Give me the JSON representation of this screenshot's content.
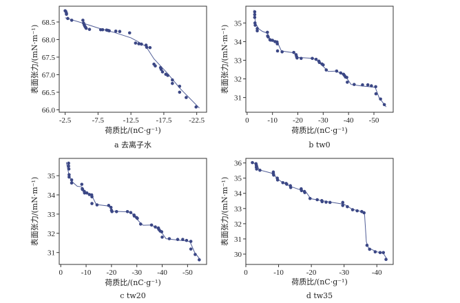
{
  "colors": {
    "points": "#3b4785",
    "line": "#4f5c96",
    "frame": "#333333"
  },
  "chart_data": [
    {
      "type": "scatter",
      "caption": "a  去离子水",
      "xlabel": "荷质比/(nC·g⁻¹)",
      "ylabel": "表面张力/(mN·m⁻¹)",
      "xlim": [
        -1.6,
        -24.0
      ],
      "ylim": [
        65.93,
        68.95
      ],
      "xticks": [
        -2.5,
        -7.5,
        -12.5,
        -17.5,
        -22.5
      ],
      "xtick_labels": [
        "-2.5",
        "-7.5",
        "-12.5",
        "-17.5",
        "-22.5"
      ],
      "yticks": [
        66.0,
        66.5,
        67.0,
        67.5,
        68.0,
        68.5
      ],
      "ytick_labels": [
        "66.0",
        "66.5",
        "67.0",
        "67.5",
        "68.0",
        "68.5"
      ],
      "points": [
        [
          -2.5,
          68.82
        ],
        [
          -2.6,
          68.8
        ],
        [
          -2.7,
          68.75
        ],
        [
          -2.7,
          68.72
        ],
        [
          -2.9,
          68.6
        ],
        [
          -3.5,
          68.55
        ],
        [
          -5.2,
          68.55
        ],
        [
          -5.3,
          68.47
        ],
        [
          -5.4,
          68.42
        ],
        [
          -5.5,
          68.38
        ],
        [
          -5.6,
          68.35
        ],
        [
          -5.7,
          68.32
        ],
        [
          -6.2,
          68.29
        ],
        [
          -7.9,
          68.28
        ],
        [
          -8.2,
          68.28
        ],
        [
          -8.8,
          68.27
        ],
        [
          -9.0,
          68.26
        ],
        [
          -9.2,
          68.25
        ],
        [
          -10.2,
          68.24
        ],
        [
          -10.8,
          68.23
        ],
        [
          -12.3,
          68.19
        ],
        [
          -13.2,
          67.9
        ],
        [
          -13.7,
          67.88
        ],
        [
          -14.1,
          67.87
        ],
        [
          -14.8,
          67.84
        ],
        [
          -14.9,
          67.78
        ],
        [
          -15.4,
          67.77
        ],
        [
          -16.0,
          67.3
        ],
        [
          -16.2,
          67.25
        ],
        [
          -17.0,
          67.2
        ],
        [
          -17.1,
          67.15
        ],
        [
          -17.3,
          67.08
        ],
        [
          -17.8,
          67.01
        ],
        [
          -18.1,
          66.98
        ],
        [
          -18.8,
          66.85
        ],
        [
          -18.8,
          66.75
        ],
        [
          -19.9,
          66.67
        ],
        [
          -19.9,
          66.5
        ],
        [
          -20.9,
          66.35
        ],
        [
          -22.4,
          66.08
        ]
      ],
      "fit_line": [
        [
          -2.5,
          68.62
        ],
        [
          -5.5,
          68.45
        ],
        [
          -8,
          68.3
        ],
        [
          -10,
          68.2
        ],
        [
          -12.5,
          68.05
        ],
        [
          -13.5,
          67.95
        ],
        [
          -14.8,
          67.8
        ],
        [
          -16,
          67.45
        ],
        [
          -18,
          67.05
        ],
        [
          -20,
          66.6
        ],
        [
          -22.9,
          66.05
        ]
      ]
    },
    {
      "type": "scatter",
      "caption": "b  tw0",
      "xlabel": "荷质比/(nC·g⁻¹)",
      "ylabel": "表面张力/(mN·m⁻¹)",
      "xlim": [
        0.5,
        -57.6
      ],
      "ylim": [
        30.21,
        35.9
      ],
      "xticks": [
        0,
        -10,
        -20,
        -30,
        -40,
        -50
      ],
      "xtick_labels": [
        "0",
        "-10",
        "-20",
        "-30",
        "-40",
        "-50"
      ],
      "yticks": [
        31,
        32,
        33,
        34,
        35
      ],
      "ytick_labels": [
        "31",
        "32",
        "33",
        "34",
        "35"
      ],
      "points": [
        [
          -3,
          35.6
        ],
        [
          -3,
          35.45
        ],
        [
          -3,
          35.3
        ],
        [
          -3.1,
          35.0
        ],
        [
          -3.2,
          34.88
        ],
        [
          -4,
          34.7
        ],
        [
          -4,
          34.58
        ],
        [
          -8,
          34.5
        ],
        [
          -8.1,
          34.3
        ],
        [
          -8.3,
          34.25
        ],
        [
          -9,
          34.1
        ],
        [
          -9.2,
          34.08
        ],
        [
          -10,
          34.07
        ],
        [
          -11,
          34.0
        ],
        [
          -11.8,
          33.98
        ],
        [
          -11.9,
          33.88
        ],
        [
          -12,
          33.5
        ],
        [
          -13.8,
          33.45
        ],
        [
          -18.4,
          33.42
        ],
        [
          -19.3,
          33.3
        ],
        [
          -19.5,
          33.2
        ],
        [
          -19.7,
          33.12
        ],
        [
          -21.3,
          33.1
        ],
        [
          -25.7,
          33.1
        ],
        [
          -27.2,
          33.05
        ],
        [
          -28.3,
          32.95
        ],
        [
          -28.5,
          32.88
        ],
        [
          -29.5,
          32.8
        ],
        [
          -30,
          32.75
        ],
        [
          -31.2,
          32.48
        ],
        [
          -35.3,
          32.42
        ],
        [
          -36.9,
          32.32
        ],
        [
          -38,
          32.25
        ],
        [
          -38.4,
          32.18
        ],
        [
          -38.8,
          32.1
        ],
        [
          -39.3,
          32.08
        ],
        [
          -39.5,
          31.82
        ],
        [
          -42.2,
          31.7
        ],
        [
          -45.5,
          31.68
        ],
        [
          -47.6,
          31.68
        ],
        [
          -49,
          31.63
        ],
        [
          -50.7,
          31.58
        ],
        [
          -50.8,
          31.2
        ],
        [
          -52.6,
          30.92
        ],
        [
          -54.1,
          30.62
        ]
      ],
      "fit_line": [
        [
          -2.7,
          35.7
        ],
        [
          -3.3,
          35.0
        ],
        [
          -4.5,
          34.7
        ],
        [
          -6,
          34.55
        ],
        [
          -8,
          34.45
        ],
        [
          -9,
          34.15
        ],
        [
          -12,
          33.95
        ],
        [
          -13.5,
          33.5
        ],
        [
          -18.5,
          33.4
        ],
        [
          -20,
          33.15
        ],
        [
          -26,
          33.1
        ],
        [
          -27.5,
          33.0
        ],
        [
          -30.5,
          32.6
        ],
        [
          -32,
          32.4
        ],
        [
          -35,
          32.42
        ],
        [
          -37,
          32.3
        ],
        [
          -39.5,
          32.0
        ],
        [
          -41,
          31.7
        ],
        [
          -45,
          31.62
        ],
        [
          -50.5,
          31.55
        ],
        [
          -52,
          31.0
        ],
        [
          -54.8,
          30.5
        ]
      ]
    },
    {
      "type": "scatter",
      "caption": "c  tw20",
      "xlabel": "荷质比/(nC·g⁻¹)",
      "ylabel": "表面张力/(mN·m⁻¹)",
      "xlim": [
        0.6,
        -57.5
      ],
      "ylim": [
        30.38,
        35.9
      ],
      "xticks": [
        0,
        -10,
        -20,
        -30,
        -40,
        -50
      ],
      "xtick_labels": [
        "0",
        "-10",
        "-20",
        "-30",
        "-40",
        "-50"
      ],
      "yticks": [
        31,
        32,
        33,
        34,
        35
      ],
      "ytick_labels": [
        "31",
        "32",
        "33",
        "34",
        "35"
      ],
      "points": [
        [
          -3.1,
          35.65
        ],
        [
          -3.1,
          35.5
        ],
        [
          -3.2,
          35.35
        ],
        [
          -3.3,
          35.05
        ],
        [
          -3.3,
          34.93
        ],
        [
          -4.3,
          34.78
        ],
        [
          -4.3,
          34.62
        ],
        [
          -8.3,
          34.55
        ],
        [
          -8.5,
          34.32
        ],
        [
          -8.6,
          34.28
        ],
        [
          -9.3,
          34.18
        ],
        [
          -9.4,
          34.1
        ],
        [
          -10.3,
          34.1
        ],
        [
          -11.3,
          34.02
        ],
        [
          -12.2,
          34.0
        ],
        [
          -12.3,
          33.9
        ],
        [
          -12.3,
          33.55
        ],
        [
          -14.3,
          33.48
        ],
        [
          -18.9,
          33.45
        ],
        [
          -19.8,
          33.35
        ],
        [
          -20,
          33.2
        ],
        [
          -20.2,
          33.13
        ],
        [
          -22,
          33.13
        ],
        [
          -26.3,
          33.13
        ],
        [
          -27.6,
          33.08
        ],
        [
          -28.9,
          32.95
        ],
        [
          -29,
          32.9
        ],
        [
          -29.9,
          32.82
        ],
        [
          -30.2,
          32.78
        ],
        [
          -31.5,
          32.48
        ],
        [
          -35.8,
          32.43
        ],
        [
          -37.3,
          32.33
        ],
        [
          -38.5,
          32.28
        ],
        [
          -38.7,
          32.2
        ],
        [
          -39.2,
          32.12
        ],
        [
          -39.8,
          32.08
        ],
        [
          -40,
          31.8
        ],
        [
          -42.8,
          31.72
        ],
        [
          -46.1,
          31.68
        ],
        [
          -48.1,
          31.68
        ],
        [
          -49.6,
          31.63
        ],
        [
          -51.3,
          31.58
        ],
        [
          -51.3,
          31.18
        ],
        [
          -53,
          30.9
        ],
        [
          -54.6,
          30.62
        ]
      ],
      "fit_line": [
        [
          -2.2,
          35.7
        ],
        [
          -3.4,
          34.95
        ],
        [
          -4.8,
          34.65
        ],
        [
          -6.5,
          34.45
        ],
        [
          -8.3,
          34.42
        ],
        [
          -9.3,
          34.15
        ],
        [
          -12.3,
          33.95
        ],
        [
          -14,
          33.5
        ],
        [
          -19,
          33.42
        ],
        [
          -20.3,
          33.15
        ],
        [
          -26.5,
          33.12
        ],
        [
          -28,
          33.05
        ],
        [
          -31,
          32.6
        ],
        [
          -32.5,
          32.42
        ],
        [
          -35.8,
          32.43
        ],
        [
          -37.5,
          32.3
        ],
        [
          -40,
          32.0
        ],
        [
          -41.5,
          31.72
        ],
        [
          -46,
          31.65
        ],
        [
          -50,
          31.6
        ],
        [
          -51,
          31.55
        ],
        [
          -52.8,
          31.0
        ],
        [
          -55.2,
          30.6
        ]
      ]
    },
    {
      "type": "scatter",
      "caption": "d  tw35",
      "xlabel": "荷质比/(nC·g⁻¹)",
      "ylabel": "表面张力/(mN·m⁻¹)",
      "xlim": [
        0,
        -45
      ],
      "ylim": [
        29.32,
        36.3
      ],
      "xticks": [
        0,
        -10,
        -20,
        -30,
        -40
      ],
      "xtick_labels": [
        "0",
        "-10",
        "-20",
        "-30",
        "-40"
      ],
      "yticks": [
        30,
        31,
        32,
        33,
        34,
        35,
        36
      ],
      "ytick_labels": [
        "30",
        "31",
        "32",
        "33",
        "34",
        "35",
        "36"
      ],
      "points": [
        [
          -2,
          36.02
        ],
        [
          -3.1,
          35.95
        ],
        [
          -3.2,
          35.85
        ],
        [
          -3.2,
          35.72
        ],
        [
          -3.3,
          35.6
        ],
        [
          -4.3,
          35.52
        ],
        [
          -8.4,
          35.4
        ],
        [
          -8.4,
          35.3
        ],
        [
          -8.5,
          35.2
        ],
        [
          -9.6,
          35.0
        ],
        [
          -9.7,
          34.88
        ],
        [
          -11.3,
          34.7
        ],
        [
          -12.3,
          34.65
        ],
        [
          -12.5,
          34.6
        ],
        [
          -13.6,
          34.5
        ],
        [
          -13.7,
          34.38
        ],
        [
          -16.9,
          34.3
        ],
        [
          -17,
          34.18
        ],
        [
          -17.9,
          34.12
        ],
        [
          -18,
          34.05
        ],
        [
          -19.6,
          33.66
        ],
        [
          -21.8,
          33.58
        ],
        [
          -23.2,
          33.52
        ],
        [
          -23.3,
          33.45
        ],
        [
          -24.5,
          33.42
        ],
        [
          -25.7,
          33.4
        ],
        [
          -29.6,
          33.4
        ],
        [
          -29.6,
          33.2
        ],
        [
          -31,
          33.12
        ],
        [
          -32.6,
          32.92
        ],
        [
          -34,
          32.85
        ],
        [
          -35.4,
          32.8
        ],
        [
          -36.1,
          32.72
        ],
        [
          -37,
          30.58
        ],
        [
          -37.8,
          30.32
        ],
        [
          -39.5,
          30.15
        ],
        [
          -41,
          30.1
        ],
        [
          -42,
          30.1
        ],
        [
          -42.8,
          29.65
        ]
      ],
      "fit_line": [
        [
          -2,
          36.02
        ],
        [
          -3.5,
          35.9
        ],
        [
          -4,
          35.55
        ],
        [
          -8.4,
          35.3
        ],
        [
          -9.6,
          34.95
        ],
        [
          -11,
          34.75
        ],
        [
          -13.7,
          34.45
        ],
        [
          -17,
          34.2
        ],
        [
          -18.5,
          34.05
        ],
        [
          -19.8,
          33.65
        ],
        [
          -25,
          33.45
        ],
        [
          -30,
          33.28
        ],
        [
          -32.5,
          32.95
        ],
        [
          -36.2,
          32.75
        ],
        [
          -36.8,
          30.8
        ],
        [
          -37.5,
          30.4
        ],
        [
          -40,
          30.15
        ],
        [
          -42,
          30.05
        ],
        [
          -43,
          29.7
        ]
      ]
    }
  ]
}
